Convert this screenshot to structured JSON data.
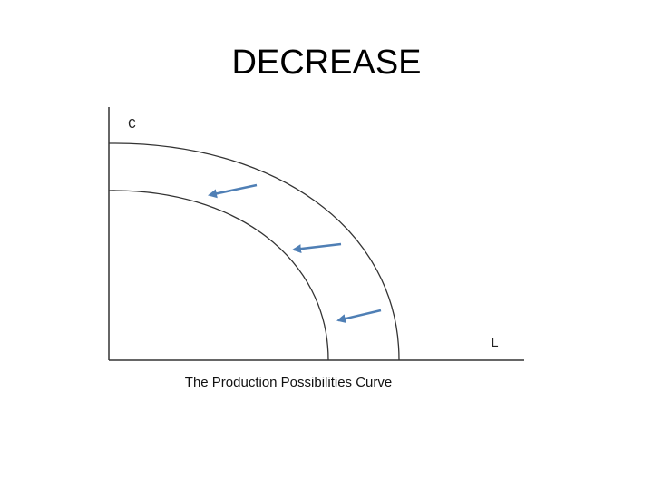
{
  "header": {
    "title": "DECREASE"
  },
  "diagram": {
    "y_axis_label": "C",
    "x_axis_label": "L",
    "caption": "The Production Possibilities Curve"
  }
}
